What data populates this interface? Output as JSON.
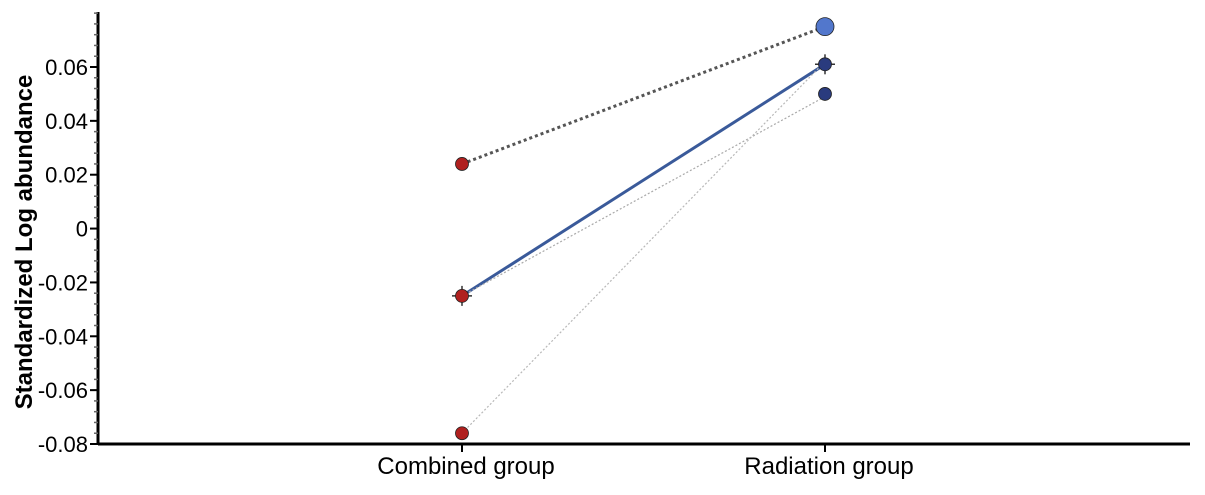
{
  "chart_data": {
    "type": "line",
    "title": "",
    "xlabel": "",
    "ylabel": "Standardized Log abundance",
    "categories": [
      "Combined group",
      "Radiation group"
    ],
    "ylim": [
      -0.08,
      0.08
    ],
    "yticks": [
      0.06,
      0.04,
      0.02,
      0,
      -0.02,
      -0.04,
      -0.06,
      -0.08
    ],
    "ytick_labels": [
      "0.06",
      "0.04",
      "0.02",
      "0",
      "-0.02",
      "-0.04",
      "-0.06",
      "-0.08"
    ],
    "grid": false,
    "series": [
      {
        "style": "dotted-heavy",
        "color": "#555555",
        "values": [
          0.024,
          0.075
        ]
      },
      {
        "style": "solid",
        "color": "#3a5a9a",
        "values": [
          -0.025,
          0.061
        ],
        "marker_end": "cross"
      },
      {
        "style": "dotted-light",
        "color": "#a9a9a9",
        "values": [
          -0.025,
          0.049
        ]
      },
      {
        "style": "dotted-light",
        "color": "#b8b8b8",
        "values": [
          -0.076,
          0.062
        ]
      }
    ],
    "points": [
      {
        "category": "Combined group",
        "y": 0.024,
        "color": "#b0201f"
      },
      {
        "category": "Combined group",
        "y": -0.025,
        "color": "#b0201f"
      },
      {
        "category": "Combined group",
        "y": -0.076,
        "color": "#b0201f"
      },
      {
        "category": "Radiation group",
        "y": 0.075,
        "color": "#5277cc"
      },
      {
        "category": "Radiation group",
        "y": 0.061,
        "color": "#2a3b7e"
      },
      {
        "category": "Radiation group",
        "y": 0.05,
        "color": "#2a3b7e"
      }
    ]
  }
}
